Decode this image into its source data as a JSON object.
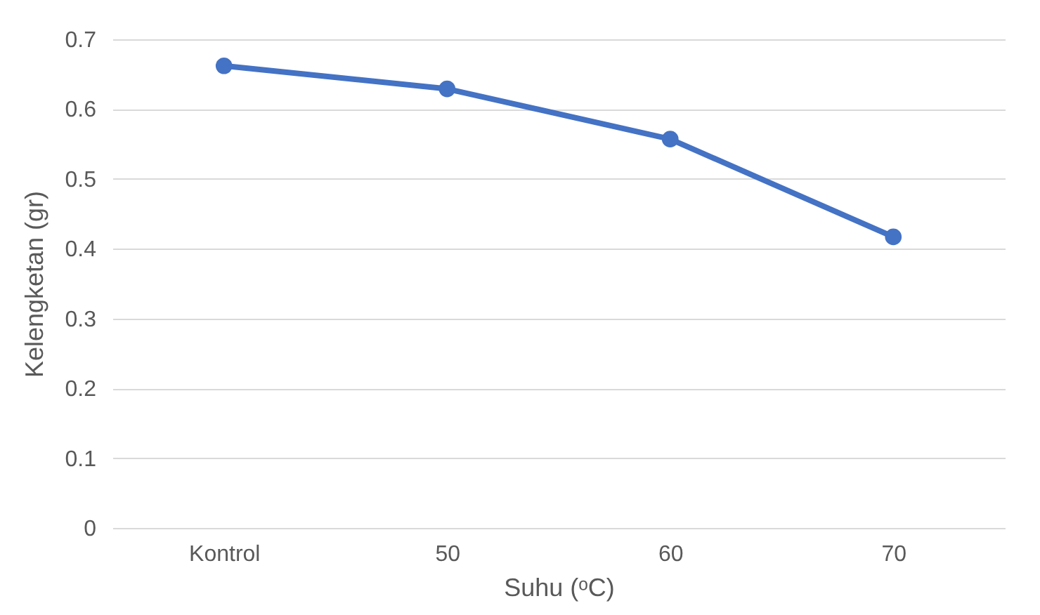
{
  "chart_data": {
    "type": "line",
    "xlabel": "Suhu (ᵒC)",
    "ylabel": "Kelengketan (gr)",
    "categories": [
      "Kontrol",
      "50",
      "60",
      "70"
    ],
    "series": [
      {
        "color": "#4472c4",
        "values": [
          0.662,
          0.629,
          0.557,
          0.417
        ]
      }
    ],
    "ylim": [
      0,
      0.7
    ],
    "yticks": [
      0,
      0.1,
      0.2,
      0.3,
      0.4,
      0.5,
      0.6,
      0.7
    ],
    "grid": "y",
    "legend": false,
    "marker": "circle",
    "line_style": "solid"
  }
}
